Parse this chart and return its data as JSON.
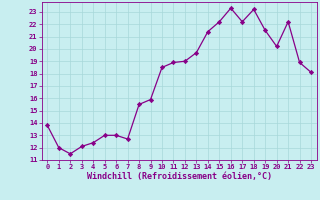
{
  "x": [
    0,
    1,
    2,
    3,
    4,
    5,
    6,
    7,
    8,
    9,
    10,
    11,
    12,
    13,
    14,
    15,
    16,
    17,
    18,
    19,
    20,
    21,
    22,
    23
  ],
  "y": [
    13.8,
    12.0,
    11.5,
    12.1,
    12.4,
    13.0,
    13.0,
    12.7,
    15.5,
    15.9,
    18.5,
    18.9,
    19.0,
    19.7,
    21.4,
    22.2,
    23.3,
    22.2,
    23.2,
    21.5,
    20.2,
    22.2,
    18.9,
    18.1
  ],
  "line_color": "#880088",
  "marker": "D",
  "marker_size": 2.2,
  "bg_color": "#c8eef0",
  "grid_color": "#a8d8da",
  "xlabel": "Windchill (Refroidissement éolien,°C)",
  "ylim": [
    11,
    23.8
  ],
  "xlim": [
    -0.5,
    23.5
  ],
  "yticks": [
    11,
    12,
    13,
    14,
    15,
    16,
    17,
    18,
    19,
    20,
    21,
    22,
    23
  ],
  "xticks": [
    0,
    1,
    2,
    3,
    4,
    5,
    6,
    7,
    8,
    9,
    10,
    11,
    12,
    13,
    14,
    15,
    16,
    17,
    18,
    19,
    20,
    21,
    22,
    23
  ],
  "tick_color": "#880088",
  "label_color": "#880088",
  "font_size_ticks": 5.0,
  "font_size_label": 6.0,
  "linewidth": 0.9
}
